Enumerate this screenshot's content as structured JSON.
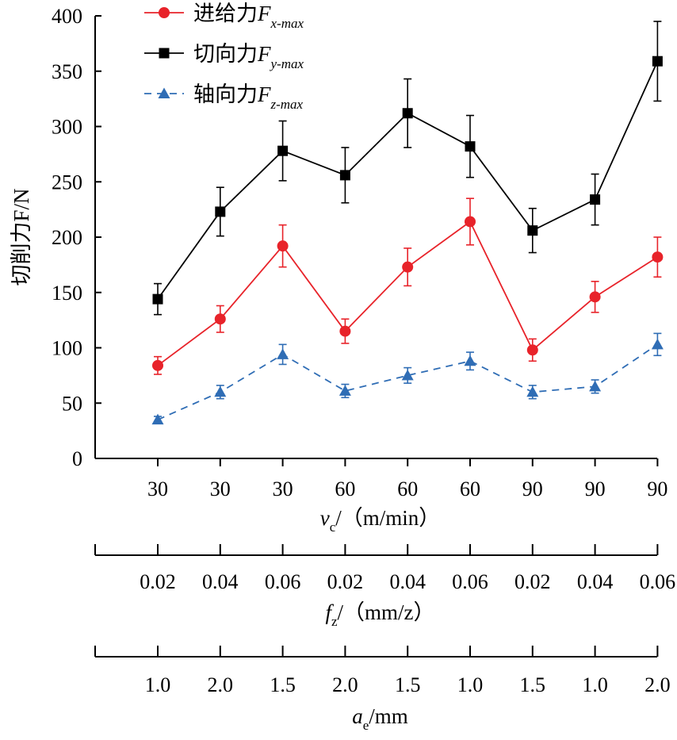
{
  "chart_data": {
    "type": "line",
    "ylabel": "切削力F/N",
    "ylim": [
      0,
      400
    ],
    "yticks": [
      0,
      50,
      100,
      150,
      200,
      250,
      300,
      350,
      400
    ],
    "x_axes": [
      {
        "label_main": "v",
        "label_sub": "c",
        "label_rest": "/（m/min）",
        "ticks": [
          "30",
          "30",
          "30",
          "60",
          "60",
          "60",
          "90",
          "90",
          "90"
        ]
      },
      {
        "label_main": "f",
        "label_sub": "z",
        "label_rest": "/（mm/z）",
        "ticks": [
          "0.02",
          "0.04",
          "0.06",
          "0.02",
          "0.04",
          "0.06",
          "0.02",
          "0.04",
          "0.06"
        ]
      },
      {
        "label_main": "a",
        "label_sub": "e",
        "label_rest": "/mm",
        "ticks": [
          "1.0",
          "2.0",
          "1.5",
          "2.0",
          "1.5",
          "1.0",
          "1.5",
          "1.0",
          "2.0"
        ]
      }
    ],
    "series": [
      {
        "name": "进给力F",
        "name_sub": "x-max",
        "color": "#e8232a",
        "marker": "circle",
        "dashed": false,
        "values": [
          84,
          126,
          192,
          115,
          173,
          214,
          98,
          146,
          182
        ],
        "errors": [
          8,
          12,
          19,
          11,
          17,
          21,
          10,
          14,
          18
        ]
      },
      {
        "name": "切向力F",
        "name_sub": "y-max",
        "color": "#000000",
        "marker": "square",
        "dashed": false,
        "values": [
          144,
          223,
          278,
          256,
          312,
          282,
          206,
          234,
          359
        ],
        "errors": [
          14,
          22,
          27,
          25,
          31,
          28,
          20,
          23,
          36
        ]
      },
      {
        "name": "轴向力F",
        "name_sub": "z-max",
        "color": "#2f6db5",
        "marker": "triangle",
        "dashed": true,
        "values": [
          35,
          60,
          94,
          61,
          75,
          88,
          60,
          65,
          103
        ],
        "errors": [
          3,
          6,
          9,
          6,
          7,
          8,
          6,
          6,
          10
        ]
      }
    ]
  }
}
